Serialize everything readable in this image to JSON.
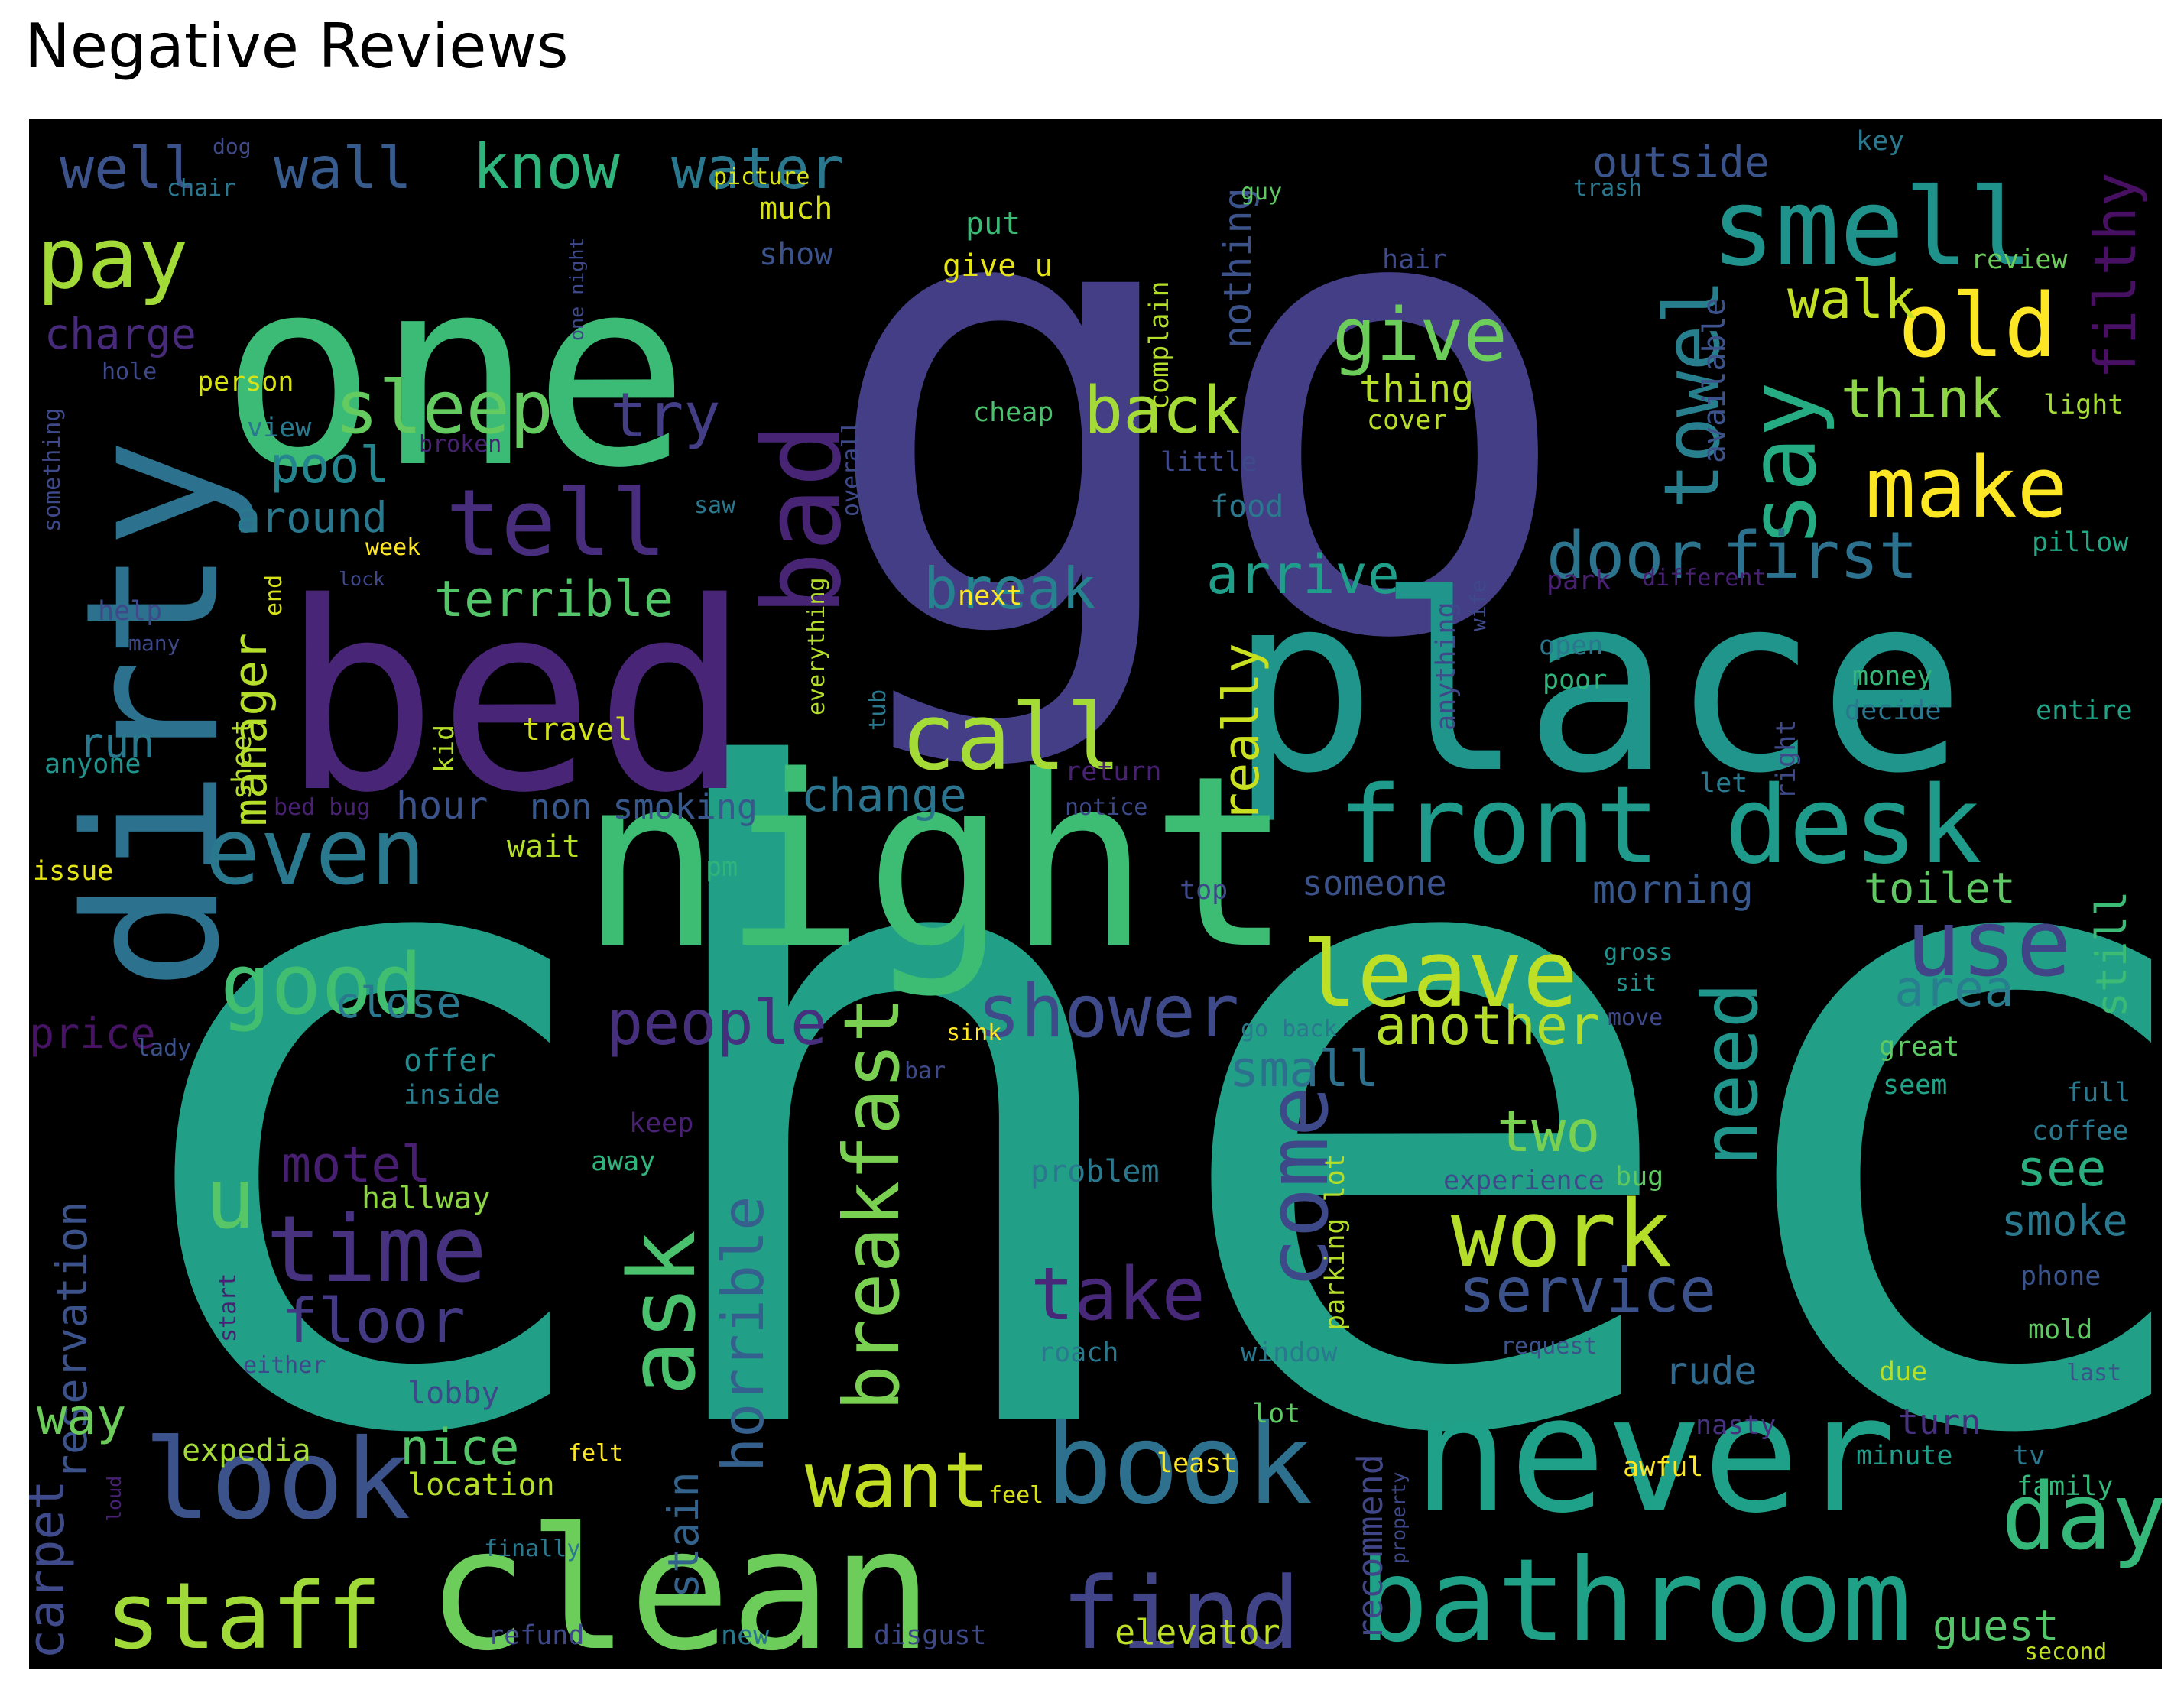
{
  "chart_data": {
    "type": "wordcloud",
    "title": "Negative Reviews",
    "background": "#000000",
    "colormap": "viridis",
    "words": [
      {
        "text": "check",
        "size": 100,
        "color": "#21a087"
      },
      {
        "text": "go",
        "size": 80,
        "color": "#433e85"
      },
      {
        "text": "one",
        "size": 60,
        "color": "#3bbb75"
      },
      {
        "text": "place",
        "size": 56,
        "color": "#1f958b"
      },
      {
        "text": "bed",
        "size": 56,
        "color": "#482576"
      },
      {
        "text": "night",
        "size": 48,
        "color": "#3dbc74"
      },
      {
        "text": "dirty",
        "size": 44,
        "color": "#2c728e"
      },
      {
        "text": "never",
        "size": 40,
        "color": "#1fa088"
      },
      {
        "text": "clean",
        "size": 40,
        "color": "#6ccd5a"
      },
      {
        "text": "front desk",
        "size": 30,
        "color": "#1e9b8a"
      },
      {
        "text": "bathroom",
        "size": 28,
        "color": "#1fa187"
      },
      {
        "text": "look",
        "size": 28,
        "color": "#3b528b"
      },
      {
        "text": "book",
        "size": 28,
        "color": "#2d718e"
      },
      {
        "text": "bad",
        "size": 26,
        "color": "#482475"
      },
      {
        "text": "smell",
        "size": 26,
        "color": "#20928c"
      },
      {
        "text": "work",
        "size": 24,
        "color": "#b5de2b"
      },
      {
        "text": "time",
        "size": 24,
        "color": "#46327e"
      },
      {
        "text": "tell",
        "size": 24,
        "color": "#472d7b"
      },
      {
        "text": "leave",
        "size": 24,
        "color": "#bddf26"
      },
      {
        "text": "staff",
        "size": 24,
        "color": "#a0da39"
      },
      {
        "text": "find",
        "size": 24,
        "color": "#414487"
      },
      {
        "text": "day",
        "size": 24,
        "color": "#35b779"
      },
      {
        "text": "even",
        "size": 24,
        "color": "#2a788e"
      },
      {
        "text": "pay",
        "size": 24,
        "color": "#a2da37"
      },
      {
        "text": "good",
        "size": 22,
        "color": "#42be71"
      },
      {
        "text": "ask",
        "size": 22,
        "color": "#4ac16d"
      },
      {
        "text": "use",
        "size": 22,
        "color": "#414487"
      },
      {
        "text": "say",
        "size": 22,
        "color": "#25ac82"
      },
      {
        "text": "make",
        "size": 22,
        "color": "#fde725"
      },
      {
        "text": "old",
        "size": 22,
        "color": "#fde725"
      },
      {
        "text": "call",
        "size": 22,
        "color": "#a5db36"
      },
      {
        "text": "need",
        "size": 20,
        "color": "#1f958b"
      },
      {
        "text": "breakfast",
        "size": 20,
        "color": "#7ad151"
      },
      {
        "text": "come",
        "size": 20,
        "color": "#3e4989"
      },
      {
        "text": "want",
        "size": 20,
        "color": "#c2df23"
      },
      {
        "text": "towel",
        "size": 20,
        "color": "#277f8e"
      },
      {
        "text": "u",
        "size": 20,
        "color": "#56c667"
      },
      {
        "text": "shower",
        "size": 18,
        "color": "#3e4a89"
      },
      {
        "text": "horrible",
        "size": 18,
        "color": "#355f8d"
      },
      {
        "text": "door",
        "size": 18,
        "color": "#2c738e"
      },
      {
        "text": "first",
        "size": 18,
        "color": "#2c728e"
      },
      {
        "text": "take",
        "size": 18,
        "color": "#482878"
      },
      {
        "text": "give",
        "size": 18,
        "color": "#6ccd5a"
      },
      {
        "text": "sleep",
        "size": 18,
        "color": "#63cb5f"
      },
      {
        "text": "floor",
        "size": 18,
        "color": "#443983"
      },
      {
        "text": "service",
        "size": 18,
        "color": "#3b528b"
      },
      {
        "text": "back",
        "size": 18,
        "color": "#a5db36"
      },
      {
        "text": "people",
        "size": 16,
        "color": "#46307e"
      },
      {
        "text": "know",
        "size": 16,
        "color": "#2fb47c"
      },
      {
        "text": "water",
        "size": 16,
        "color": "#2a788e"
      },
      {
        "text": "wall",
        "size": 16,
        "color": "#375b8d"
      },
      {
        "text": "well",
        "size": 16,
        "color": "#3b528b"
      },
      {
        "text": "try",
        "size": 16,
        "color": "#433e85"
      },
      {
        "text": "two",
        "size": 16,
        "color": "#7ad151"
      },
      {
        "text": "motel",
        "size": 16,
        "color": "#481f70"
      },
      {
        "text": "another",
        "size": 16,
        "color": "#b5de2b"
      },
      {
        "text": "filthy",
        "size": 16,
        "color": "#471063"
      },
      {
        "text": "walk",
        "size": 16,
        "color": "#c2df23"
      },
      {
        "text": "think",
        "size": 16,
        "color": "#8ed645"
      },
      {
        "text": "break",
        "size": 16,
        "color": "#26828e"
      },
      {
        "text": "arrive",
        "size": 16,
        "color": "#1f9e89"
      },
      {
        "text": "pool",
        "size": 14,
        "color": "#25858e"
      },
      {
        "text": "terrible",
        "size": 14,
        "color": "#54c568"
      },
      {
        "text": "manager",
        "size": 14,
        "color": "#b5de2b"
      },
      {
        "text": "really",
        "size": 14,
        "color": "#c8e020"
      },
      {
        "text": "small",
        "size": 14,
        "color": "#2d708e"
      },
      {
        "text": "carpet",
        "size": 14,
        "color": "#3e4a89"
      },
      {
        "text": "reservation",
        "size": 14,
        "color": "#3b528b"
      },
      {
        "text": "around",
        "size": 14,
        "color": "#2a788e"
      },
      {
        "text": "charge",
        "size": 14,
        "color": "#472a7a"
      },
      {
        "text": "change",
        "size": 14,
        "color": "#2c738e"
      },
      {
        "text": "close",
        "size": 14,
        "color": "#2a788e"
      },
      {
        "text": "price",
        "size": 14,
        "color": "#471365"
      },
      {
        "text": "nice",
        "size": 14,
        "color": "#54c568"
      },
      {
        "text": "stain",
        "size": 14,
        "color": "#33638d"
      },
      {
        "text": "toilet",
        "size": 14,
        "color": "#5ec962"
      },
      {
        "text": "area",
        "size": 14,
        "color": "#287d8e"
      },
      {
        "text": "still",
        "size": 14,
        "color": "#3bbb75"
      },
      {
        "text": "see",
        "size": 14,
        "color": "#29af7f"
      },
      {
        "text": "smoke",
        "size": 14,
        "color": "#2a788e"
      },
      {
        "text": "guest",
        "size": 14,
        "color": "#54c568"
      },
      {
        "text": "outside",
        "size": 14,
        "color": "#3a538b"
      },
      {
        "text": "way",
        "size": 14,
        "color": "#6ccd5a"
      },
      {
        "text": "run",
        "size": 14,
        "color": "#2a788e"
      },
      {
        "text": "nothing",
        "size": 12,
        "color": "#3b528b"
      },
      {
        "text": "thing",
        "size": 12,
        "color": "#b5de2b"
      },
      {
        "text": "hour",
        "size": 12,
        "color": "#3b528b"
      },
      {
        "text": "non smoking",
        "size": 12,
        "color": "#38588c"
      },
      {
        "text": "someone",
        "size": 12,
        "color": "#3b528b"
      },
      {
        "text": "morning",
        "size": 12,
        "color": "#38588c"
      },
      {
        "text": "recommend",
        "size": 12,
        "color": "#404688"
      },
      {
        "text": "elevator",
        "size": 12,
        "color": "#bddf26"
      },
      {
        "text": "rude",
        "size": 12,
        "color": "#30698e"
      },
      {
        "text": "turn",
        "size": 12,
        "color": "#46317e"
      },
      {
        "text": "available",
        "size": 12,
        "color": "#3b528b"
      },
      {
        "text": "problem",
        "size": 10,
        "color": "#2a788e"
      },
      {
        "text": "expedia",
        "size": 10,
        "color": "#a5db36"
      },
      {
        "text": "location",
        "size": 10,
        "color": "#b5de2b"
      },
      {
        "text": "lobby",
        "size": 10,
        "color": "#3e4989"
      },
      {
        "text": "hallway",
        "size": 10,
        "color": "#8ed645"
      },
      {
        "text": "offer",
        "size": 10,
        "color": "#238a8d"
      },
      {
        "text": "inside",
        "size": 10,
        "color": "#287d8e"
      },
      {
        "text": "travel",
        "size": 10,
        "color": "#d2e21b"
      },
      {
        "text": "wait",
        "size": 10,
        "color": "#b5de2b"
      },
      {
        "text": "much",
        "size": 10,
        "color": "#d8e219"
      },
      {
        "text": "show",
        "size": 10,
        "color": "#3b528b"
      },
      {
        "text": "put",
        "size": 10,
        "color": "#3aba76"
      },
      {
        "text": "give u",
        "size": 10,
        "color": "#e5e419"
      },
      {
        "text": "cheap",
        "size": 10,
        "color": "#4ac16d"
      },
      {
        "text": "cover",
        "size": 10,
        "color": "#b8de29"
      },
      {
        "text": "complain",
        "size": 10,
        "color": "#b5de2b"
      },
      {
        "text": "little",
        "size": 10,
        "color": "#3e4a89"
      },
      {
        "text": "food",
        "size": 10,
        "color": "#2a788e"
      },
      {
        "text": "hair",
        "size": 10,
        "color": "#3e4a89"
      },
      {
        "text": "review",
        "size": 10,
        "color": "#6ccd5a"
      },
      {
        "text": "light",
        "size": 10,
        "color": "#a5db36"
      },
      {
        "text": "pillow",
        "size": 10,
        "color": "#22a785"
      },
      {
        "text": "money",
        "size": 10,
        "color": "#35b779"
      },
      {
        "text": "decide",
        "size": 10,
        "color": "#2a788e"
      },
      {
        "text": "entire",
        "size": 10,
        "color": "#20a486"
      },
      {
        "text": "open",
        "size": 10,
        "color": "#2a788e"
      },
      {
        "text": "poor",
        "size": 10,
        "color": "#2fb47c"
      },
      {
        "text": "let",
        "size": 10,
        "color": "#2a788e"
      },
      {
        "text": "great",
        "size": 10,
        "color": "#5ec962"
      },
      {
        "text": "seem",
        "size": 10,
        "color": "#20a386"
      },
      {
        "text": "full",
        "size": 10,
        "color": "#2a788e"
      },
      {
        "text": "coffee",
        "size": 10,
        "color": "#2a788e"
      },
      {
        "text": "experience",
        "size": 10,
        "color": "#3e4989"
      },
      {
        "text": "phone",
        "size": 10,
        "color": "#3a538b"
      },
      {
        "text": "mold",
        "size": 10,
        "color": "#5ec962"
      },
      {
        "text": "last",
        "size": 10,
        "color": "#3b528b"
      },
      {
        "text": "due",
        "size": 10,
        "color": "#b5de2b"
      },
      {
        "text": "minute",
        "size": 10,
        "color": "#1f9e89"
      },
      {
        "text": "tv",
        "size": 10,
        "color": "#2a788e"
      },
      {
        "text": "family",
        "size": 10,
        "color": "#35b779"
      },
      {
        "text": "second",
        "size": 10,
        "color": "#bddf26"
      },
      {
        "text": "nasty",
        "size": 10,
        "color": "#46317e"
      },
      {
        "text": "awful",
        "size": 10,
        "color": "#fde725"
      },
      {
        "text": "least",
        "size": 10,
        "color": "#fde725"
      },
      {
        "text": "lot",
        "size": 10,
        "color": "#5ec962"
      },
      {
        "text": "window",
        "size": 10,
        "color": "#2a788e"
      },
      {
        "text": "roach",
        "size": 10,
        "color": "#2a788e"
      },
      {
        "text": "request",
        "size": 10,
        "color": "#3b528b"
      },
      {
        "text": "bug",
        "size": 10,
        "color": "#5ec962"
      },
      {
        "text": "parking lot",
        "size": 10,
        "color": "#b5de2b"
      },
      {
        "text": "go back",
        "size": 10,
        "color": "#2a788e"
      },
      {
        "text": "gross",
        "size": 10,
        "color": "#20928c"
      },
      {
        "text": "sit",
        "size": 10,
        "color": "#20928c"
      },
      {
        "text": "move",
        "size": 10,
        "color": "#3e4989"
      },
      {
        "text": "top",
        "size": 10,
        "color": "#3e4989"
      },
      {
        "text": "return",
        "size": 10,
        "color": "#482173"
      },
      {
        "text": "notice",
        "size": 10,
        "color": "#3e4989"
      },
      {
        "text": "keep",
        "size": 10,
        "color": "#482173"
      },
      {
        "text": "away",
        "size": 10,
        "color": "#2fb47c"
      },
      {
        "text": "anyone",
        "size": 10,
        "color": "#20928c"
      },
      {
        "text": "sheet",
        "size": 10,
        "color": "#b5de2b"
      },
      {
        "text": "kid",
        "size": 10,
        "color": "#b5de2b"
      },
      {
        "text": "bed bug",
        "size": 10,
        "color": "#482173"
      },
      {
        "text": "issue",
        "size": 10,
        "color": "#e5e419"
      },
      {
        "text": "pm",
        "size": 10,
        "color": "#2fb47c"
      },
      {
        "text": "lady",
        "size": 10,
        "color": "#3b528b"
      },
      {
        "text": "sink",
        "size": 10,
        "color": "#fde725"
      },
      {
        "text": "bar",
        "size": 10,
        "color": "#3e4989"
      },
      {
        "text": "tub",
        "size": 10,
        "color": "#2a788e"
      },
      {
        "text": "everything",
        "size": 10,
        "color": "#b5de2b"
      },
      {
        "text": "overall",
        "size": 10,
        "color": "#3e4989"
      },
      {
        "text": "next",
        "size": 10,
        "color": "#fde725"
      },
      {
        "text": "saw",
        "size": 10,
        "color": "#2a788e"
      },
      {
        "text": "broken",
        "size": 10,
        "color": "#482173"
      },
      {
        "text": "view",
        "size": 10,
        "color": "#2a788e"
      },
      {
        "text": "person",
        "size": 10,
        "color": "#d8e219"
      },
      {
        "text": "hole",
        "size": 10,
        "color": "#3e4989"
      },
      {
        "text": "something",
        "size": 10,
        "color": "#3e4989"
      },
      {
        "text": "week",
        "size": 10,
        "color": "#fde725"
      },
      {
        "text": "lock",
        "size": 10,
        "color": "#3e4989"
      },
      {
        "text": "end",
        "size": 10,
        "color": "#d8e219"
      },
      {
        "text": "help",
        "size": 10,
        "color": "#3e4989"
      },
      {
        "text": "many",
        "size": 10,
        "color": "#3e4989"
      },
      {
        "text": "dog",
        "size": 10,
        "color": "#3e4989"
      },
      {
        "text": "chair",
        "size": 10,
        "color": "#2a788e"
      },
      {
        "text": "picture",
        "size": 10,
        "color": "#d8e219"
      },
      {
        "text": "guy",
        "size": 10,
        "color": "#5ec962"
      },
      {
        "text": "trash",
        "size": 10,
        "color": "#2a788e"
      },
      {
        "text": "key",
        "size": 10,
        "color": "#2a788e"
      },
      {
        "text": "one night",
        "size": 10,
        "color": "#3e4989"
      },
      {
        "text": "park",
        "size": 10,
        "color": "#482173"
      },
      {
        "text": "different",
        "size": 10,
        "color": "#482173"
      },
      {
        "text": "anything",
        "size": 10,
        "color": "#3e4989"
      },
      {
        "text": "wife",
        "size": 10,
        "color": "#3e4989"
      },
      {
        "text": "right",
        "size": 10,
        "color": "#3e4989"
      },
      {
        "text": "either",
        "size": 10,
        "color": "#3e4989"
      },
      {
        "text": "start",
        "size": 10,
        "color": "#482173"
      },
      {
        "text": "felt",
        "size": 10,
        "color": "#fde725"
      },
      {
        "text": "feel",
        "size": 10,
        "color": "#d8e219"
      },
      {
        "text": "loud",
        "size": 10,
        "color": "#482173"
      },
      {
        "text": "finally",
        "size": 10,
        "color": "#2a788e"
      },
      {
        "text": "refund",
        "size": 10,
        "color": "#3e4989"
      },
      {
        "text": "new",
        "size": 10,
        "color": "#2a788e"
      },
      {
        "text": "disgust",
        "size": 10,
        "color": "#3e4989"
      },
      {
        "text": "property",
        "size": 10,
        "color": "#3e4989"
      }
    ]
  }
}
